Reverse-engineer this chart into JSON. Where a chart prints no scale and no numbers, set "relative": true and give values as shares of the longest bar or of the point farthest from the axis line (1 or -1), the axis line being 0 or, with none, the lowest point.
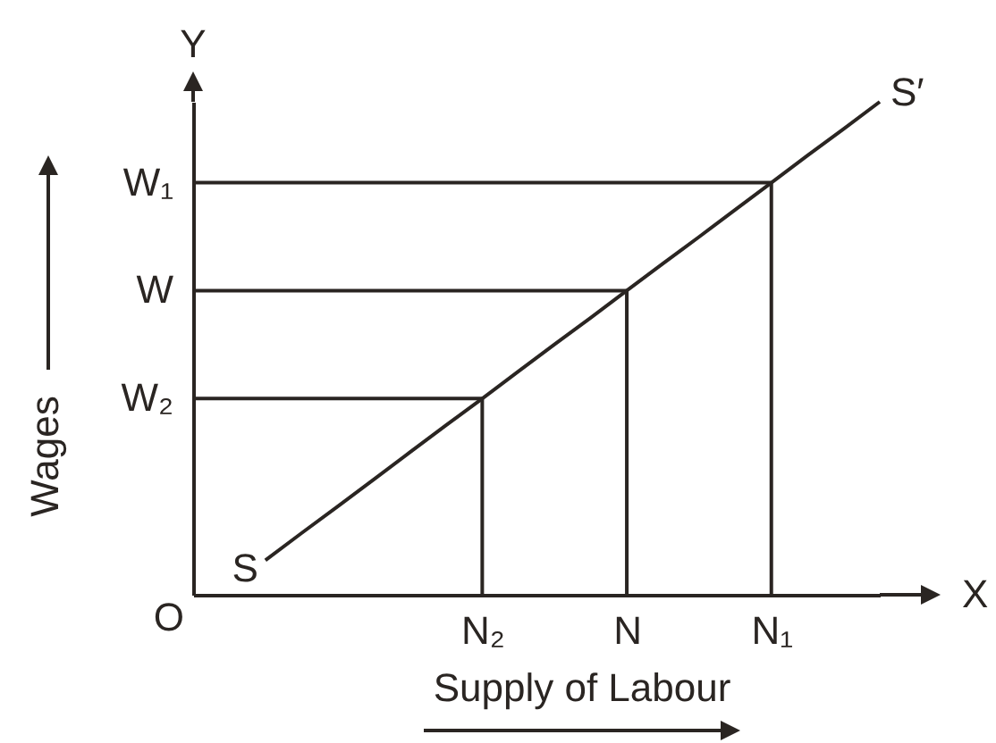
{
  "chart_data": {
    "type": "line",
    "relative": true,
    "xlabel": "Supply of Labour",
    "ylabel": "Wages",
    "categories": [
      null,
      null,
      null,
      null,
      null,
      null,
      null,
      null,
      "N₂",
      null,
      null,
      null,
      "N",
      null,
      null,
      null,
      "N₁",
      null,
      null,
      null
    ],
    "series": [
      {
        "color": "#2a2522",
        "values": [
          null,
          null,
          0.07,
          0.125,
          0.179,
          0.234,
          0.289,
          0.344,
          0.398,
          0.453,
          0.508,
          0.562,
          0.617,
          0.672,
          0.726,
          0.781,
          0.836,
          0.891,
          0.945,
          1
        ]
      },
      {
        "color": "#2a2522",
        "values": [
          0.398,
          0.398,
          0.398,
          0.398,
          0.398,
          0.398,
          0.398,
          0.398,
          0.398,
          null,
          null,
          null,
          null,
          null,
          null,
          null,
          null,
          null,
          null,
          null
        ]
      },
      {
        "color": "#2a2522",
        "x": [
          "N₂",
          "N₂"
        ],
        "values": [
          0.398,
          0
        ]
      },
      {
        "color": "#2a2522",
        "values": [
          0.617,
          0.617,
          0.617,
          0.617,
          0.617,
          0.617,
          0.617,
          0.617,
          0.617,
          0.617,
          0.617,
          0.617,
          0.617,
          null,
          null,
          null,
          null,
          null,
          null,
          null
        ]
      },
      {
        "color": "#2a2522",
        "x": [
          "N",
          "N"
        ],
        "values": [
          0.617,
          0
        ]
      },
      {
        "color": "#2a2522",
        "values": [
          0.836,
          0.836,
          0.836,
          0.836,
          0.836,
          0.836,
          0.836,
          0.836,
          0.836,
          0.836,
          0.836,
          0.836,
          0.836,
          0.836,
          0.836,
          0.836,
          0.836,
          null,
          null,
          null
        ]
      },
      {
        "color": "#2a2522",
        "x": [
          "N₁",
          "N₁"
        ],
        "values": [
          0.836,
          0
        ]
      }
    ],
    "annotations": [
      "Y",
      "W₁",
      "W",
      "W₂",
      "S′",
      "S",
      "O",
      "X"
    ]
  }
}
